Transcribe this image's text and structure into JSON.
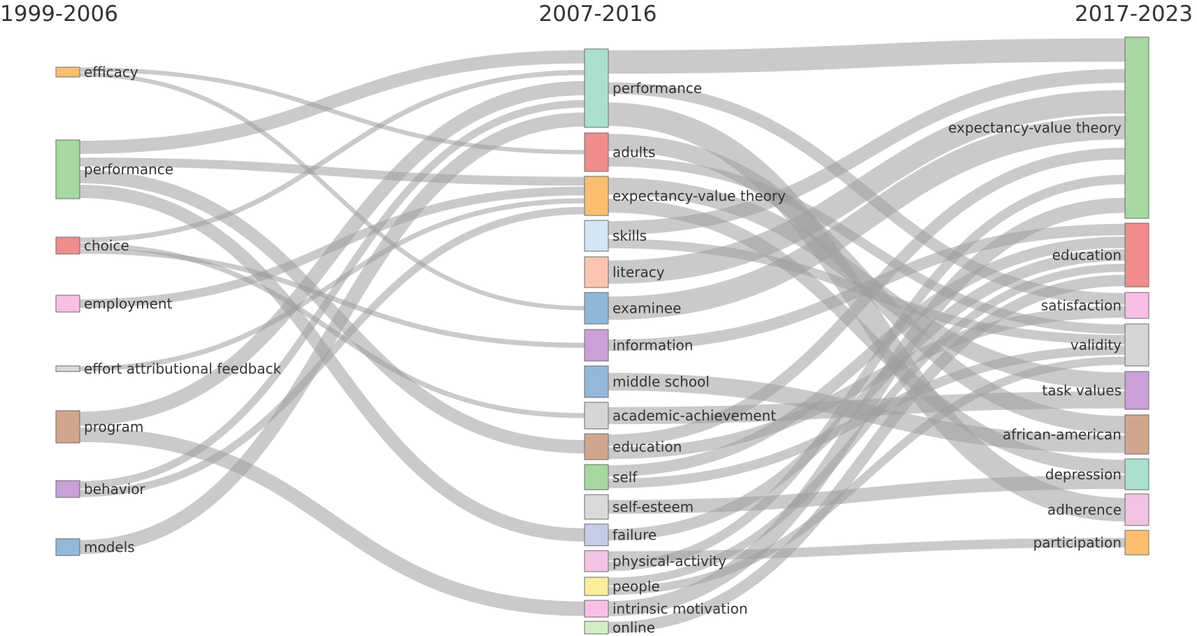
{
  "periods": {
    "p1": "1999-2006",
    "p2": "2007-2016",
    "p3": "2017-2023"
  },
  "colors": {
    "link": "#9e9e9e",
    "node_stroke": "#6b6b6b",
    "text": "#333333"
  },
  "nodes": {
    "c1": [
      {
        "label": "efficacy",
        "color": "#fdbf6f"
      },
      {
        "label": "performance",
        "color": "#a6d8a0"
      },
      {
        "label": "choice",
        "color": "#f08c8c"
      },
      {
        "label": "employment",
        "color": "#f9bfe3"
      },
      {
        "label": "effort attributional feedback",
        "color": "#d9d9d9"
      },
      {
        "label": "program",
        "color": "#d2a68e"
      },
      {
        "label": "behavior",
        "color": "#c9a0d8"
      },
      {
        "label": "models",
        "color": "#93b8da"
      }
    ],
    "c2": [
      {
        "label": "performance",
        "color": "#a9e0d0"
      },
      {
        "label": "adults",
        "color": "#f08c8c"
      },
      {
        "label": "expectancy-value theory",
        "color": "#fdbf6f"
      },
      {
        "label": "skills",
        "color": "#d4e6f4"
      },
      {
        "label": "literacy",
        "color": "#fcc5b0"
      },
      {
        "label": "examinee",
        "color": "#8fb8da"
      },
      {
        "label": "information",
        "color": "#c9a0d8"
      },
      {
        "label": "middle school",
        "color": "#93b8da"
      },
      {
        "label": "academic-achievement",
        "color": "#d5d5d5"
      },
      {
        "label": "education",
        "color": "#d2a68e"
      },
      {
        "label": "self",
        "color": "#a6d8a0"
      },
      {
        "label": "self-esteem",
        "color": "#dadada"
      },
      {
        "label": "failure",
        "color": "#c3cde8"
      },
      {
        "label": "physical-activity",
        "color": "#f3c3e3"
      },
      {
        "label": "people",
        "color": "#fbee9a"
      },
      {
        "label": "intrinsic motivation",
        "color": "#f9c0e4"
      },
      {
        "label": "online",
        "color": "#d4eec4"
      }
    ],
    "c3": [
      {
        "label": "expectancy-value theory",
        "color": "#a6d8a0"
      },
      {
        "label": "education",
        "color": "#f08c8c"
      },
      {
        "label": "satisfaction",
        "color": "#f9bfe3"
      },
      {
        "label": "validity",
        "color": "#d5d5d5"
      },
      {
        "label": "task values",
        "color": "#c9a0d8"
      },
      {
        "label": "african-american",
        "color": "#d2a68e"
      },
      {
        "label": "depression",
        "color": "#a9e0d0"
      },
      {
        "label": "adherence",
        "color": "#f3c3e3"
      },
      {
        "label": "participation",
        "color": "#fdbf6f"
      }
    ]
  },
  "links": [
    [
      "c1",
      0,
      "c2",
      1
    ],
    [
      "c1",
      0,
      "c2",
      5
    ],
    [
      "c1",
      1,
      "c2",
      0
    ],
    [
      "c1",
      1,
      "c2",
      2
    ],
    [
      "c1",
      1,
      "c2",
      9
    ],
    [
      "c1",
      1,
      "c2",
      12
    ],
    [
      "c1",
      2,
      "c2",
      0
    ],
    [
      "c1",
      2,
      "c2",
      8
    ],
    [
      "c1",
      2,
      "c2",
      6
    ],
    [
      "c1",
      3,
      "c2",
      2
    ],
    [
      "c1",
      4,
      "c2",
      2
    ],
    [
      "c1",
      5,
      "c2",
      0
    ],
    [
      "c1",
      5,
      "c2",
      15
    ],
    [
      "c1",
      6,
      "c2",
      0
    ],
    [
      "c1",
      6,
      "c2",
      2
    ],
    [
      "c1",
      7,
      "c2",
      0
    ],
    [
      "c2",
      0,
      "c3",
      0
    ],
    [
      "c2",
      0,
      "c3",
      2
    ],
    [
      "c2",
      0,
      "c3",
      7
    ],
    [
      "c2",
      1,
      "c3",
      5
    ],
    [
      "c2",
      1,
      "c3",
      3
    ],
    [
      "c2",
      2,
      "c3",
      4
    ],
    [
      "c2",
      2,
      "c3",
      6
    ],
    [
      "c2",
      3,
      "c3",
      0
    ],
    [
      "c2",
      3,
      "c3",
      3
    ],
    [
      "c2",
      4,
      "c3",
      0
    ],
    [
      "c2",
      5,
      "c3",
      0
    ],
    [
      "c2",
      6,
      "c3",
      1
    ],
    [
      "c2",
      7,
      "c3",
      5
    ],
    [
      "c2",
      8,
      "c3",
      4
    ],
    [
      "c2",
      9,
      "c3",
      0
    ],
    [
      "c2",
      9,
      "c3",
      2
    ],
    [
      "c2",
      10,
      "c3",
      1
    ],
    [
      "c2",
      10,
      "c3",
      3
    ],
    [
      "c2",
      11,
      "c3",
      6
    ],
    [
      "c2",
      12,
      "c3",
      1
    ],
    [
      "c2",
      13,
      "c3",
      8
    ],
    [
      "c2",
      13,
      "c3",
      0
    ],
    [
      "c2",
      14,
      "c3",
      1
    ],
    [
      "c2",
      14,
      "c3",
      3
    ],
    [
      "c2",
      15,
      "c3",
      0
    ],
    [
      "c2",
      16,
      "c3",
      1
    ]
  ]
}
